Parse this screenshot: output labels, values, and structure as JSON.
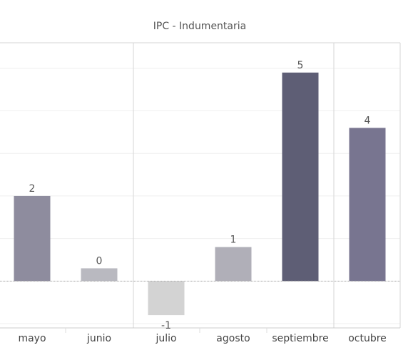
{
  "chart_data": {
    "type": "bar",
    "title": "IPC - Indumentaria",
    "categories": [
      "mayo",
      "junio",
      "julio",
      "agosto",
      "septiembre",
      "octubre"
    ],
    "values": [
      2,
      0.3,
      -0.8,
      0.8,
      4.9,
      3.6
    ],
    "data_labels": [
      "2",
      "0",
      "-1",
      "1",
      "5",
      "4"
    ],
    "ylim": [
      -1.1,
      5.6
    ],
    "grid": true,
    "bar_colors": [
      "#8e8c9e",
      "#b9b9c0",
      "#d3d3d3",
      "#b0afb8",
      "#5e5e75",
      "#787590"
    ]
  }
}
